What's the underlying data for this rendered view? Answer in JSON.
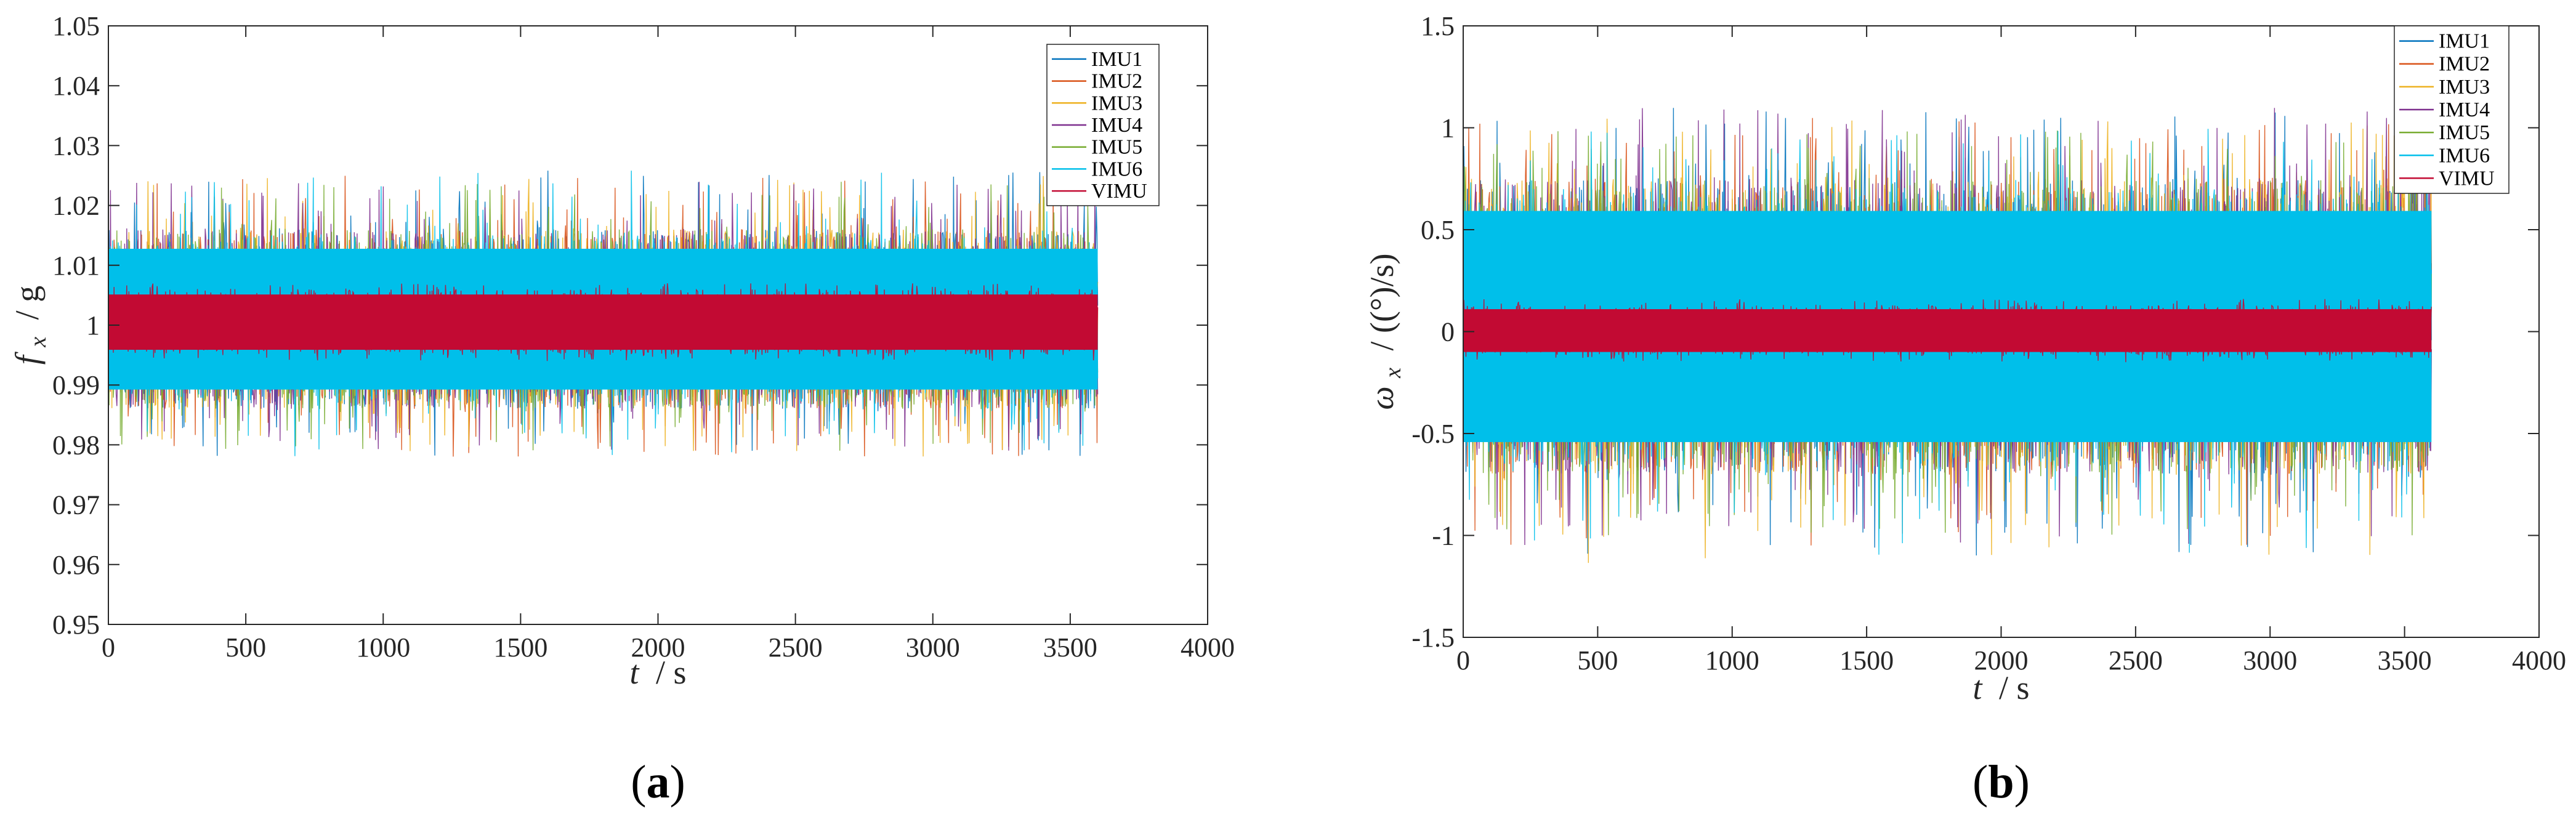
{
  "chart_data": [
    {
      "type": "line",
      "panel_label": "(a)",
      "panel_letter": "a",
      "xlabel": "t",
      "xlabel_unit": "/ s",
      "ylabel": "f",
      "ylabel_sub": "x",
      "ylabel_unit": "/ g",
      "xlim": [
        0,
        4000
      ],
      "ylim": [
        0.95,
        1.05
      ],
      "xticks": [
        0,
        500,
        1000,
        1500,
        2000,
        2500,
        3000,
        3500,
        4000
      ],
      "xtick_labels": [
        "0",
        "500",
        "1000",
        "1500",
        "2000",
        "2500",
        "3000",
        "3500",
        "4000"
      ],
      "yticks": [
        0.95,
        0.96,
        0.97,
        0.98,
        0.99,
        1.0,
        1.01,
        1.02,
        1.03,
        1.04,
        1.05
      ],
      "ytick_labels": [
        "0.95",
        "0.96",
        "0.97",
        "0.98",
        "0.99",
        "1",
        "1.01",
        "1.02",
        "1.03",
        "1.04",
        "1.05"
      ],
      "legend_position": "top-right",
      "series": [
        {
          "name": "IMU1",
          "color": "#0072BD",
          "mean": 1.0,
          "band": [
            0.986,
            1.016
          ],
          "peak": [
            0.978,
            1.026
          ]
        },
        {
          "name": "IMU2",
          "color": "#D95319",
          "mean": 1.0,
          "band": [
            0.986,
            1.016
          ],
          "peak": [
            0.978,
            1.025
          ]
        },
        {
          "name": "IMU3",
          "color": "#EDB120",
          "mean": 1.0,
          "band": [
            0.986,
            1.016
          ],
          "peak": [
            0.978,
            1.025
          ]
        },
        {
          "name": "IMU4",
          "color": "#7E2F8E",
          "mean": 1.0,
          "band": [
            0.986,
            1.016
          ],
          "peak": [
            0.979,
            1.024
          ]
        },
        {
          "name": "IMU5",
          "color": "#77AC30",
          "mean": 1.0,
          "band": [
            0.986,
            1.016
          ],
          "peak": [
            0.979,
            1.024
          ]
        },
        {
          "name": "IMU6",
          "color": "#00BFEA",
          "mean": 1.0,
          "band": [
            0.987,
            1.015
          ],
          "peak": [
            0.978,
            1.026
          ]
        },
        {
          "name": "VIMU",
          "color": "#C20A33",
          "mean": 1.0,
          "band": [
            0.995,
            1.006
          ],
          "peak": [
            0.994,
            1.007
          ]
        }
      ],
      "t_end": 3600
    },
    {
      "type": "line",
      "panel_label": "(b)",
      "panel_letter": "b",
      "xlabel": "t",
      "xlabel_unit": "/ s",
      "ylabel": "ω",
      "ylabel_sub": "x",
      "ylabel_unit": "/ ((°)/s)",
      "xlim": [
        0,
        4000
      ],
      "ylim": [
        -1.5,
        1.5
      ],
      "xticks": [
        0,
        500,
        1000,
        1500,
        2000,
        2500,
        3000,
        3500,
        4000
      ],
      "xtick_labels": [
        "0",
        "500",
        "1000",
        "1500",
        "2000",
        "2500",
        "3000",
        "3500",
        "4000"
      ],
      "yticks": [
        -1.5,
        -1,
        -0.5,
        0,
        0.5,
        1,
        1.5
      ],
      "ytick_labels": [
        "-1.5",
        "-1",
        "-0.5",
        "0",
        "0.5",
        "1",
        "1.5"
      ],
      "legend_position": "top-right",
      "series": [
        {
          "name": "IMU1",
          "color": "#0072BD",
          "mean": 0.0,
          "band": [
            -0.7,
            0.75
          ],
          "peak": [
            -1.1,
            1.1
          ]
        },
        {
          "name": "IMU2",
          "color": "#D95319",
          "mean": 0.0,
          "band": [
            -0.7,
            0.75
          ],
          "peak": [
            -1.05,
            1.05
          ]
        },
        {
          "name": "IMU3",
          "color": "#EDB120",
          "mean": 0.0,
          "band": [
            -0.7,
            0.75
          ],
          "peak": [
            -1.15,
            1.05
          ]
        },
        {
          "name": "IMU4",
          "color": "#7E2F8E",
          "mean": 0.0,
          "band": [
            -0.7,
            0.75
          ],
          "peak": [
            -1.05,
            1.1
          ]
        },
        {
          "name": "IMU5",
          "color": "#77AC30",
          "mean": 0.0,
          "band": [
            -0.7,
            0.75
          ],
          "peak": [
            -1.0,
            1.0
          ]
        },
        {
          "name": "IMU6",
          "color": "#00BFEA",
          "mean": 0.0,
          "band": [
            -0.65,
            0.7
          ],
          "peak": [
            -1.1,
            1.0
          ]
        },
        {
          "name": "VIMU",
          "color": "#C20A33",
          "mean": 0.0,
          "band": [
            -0.12,
            0.13
          ],
          "peak": [
            -0.15,
            0.16
          ]
        }
      ],
      "t_end": 3600
    }
  ]
}
